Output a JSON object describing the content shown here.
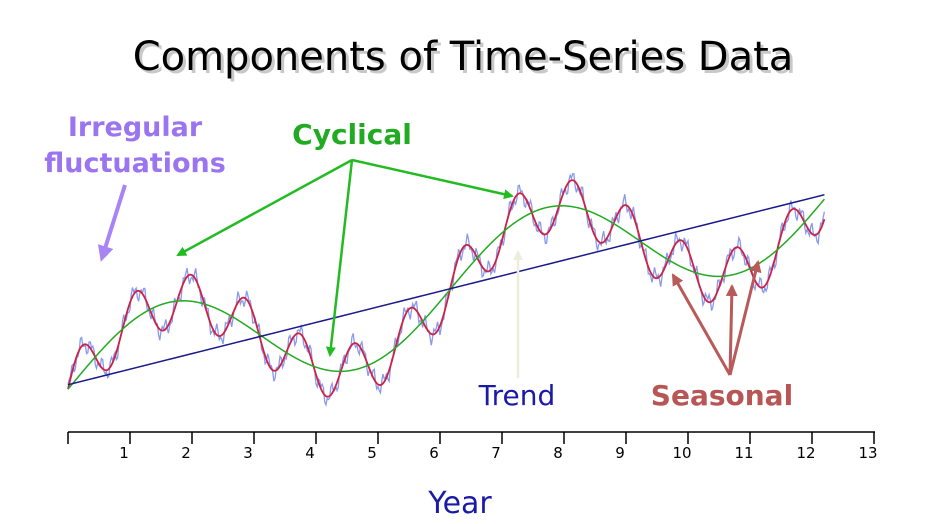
{
  "chart_data": {
    "type": "line",
    "title": "Components of Time-Series Data",
    "xlabel": "Year",
    "ylabel": "",
    "xlim": [
      0,
      13
    ],
    "ylim": [
      -1.6,
      1.6
    ],
    "x_ticks": [
      1,
      2,
      3,
      4,
      5,
      6,
      7,
      8,
      9,
      10,
      11,
      12,
      13
    ],
    "grid": false,
    "components": {
      "trend": {
        "name": "Trend",
        "start": -1.05,
        "end": 0.95,
        "color": "#1a1a8c"
      },
      "cyclical": {
        "name": "Cyclical",
        "amplitude": 0.6,
        "period_years": 6.1,
        "peak_year": 1.6,
        "color": "#22aa22"
      },
      "seasonal": {
        "name": "Seasonal",
        "amplitude": 0.28,
        "period_years": 0.88,
        "color": "#cc2244"
      },
      "irregular": {
        "name": "Irregular fluctuations",
        "amplitude": 0.12,
        "color": "#8899ee"
      }
    },
    "data_range": [
      0,
      12.2
    ],
    "annotations": [
      {
        "text": "Irregular",
        "color": "#9b74f0"
      },
      {
        "text": "fluctuations",
        "color": "#9b74f0"
      },
      {
        "text": "Cyclical",
        "color": "#22aa22"
      },
      {
        "text": "Trend",
        "color": "#1a1aa8"
      },
      {
        "text": "Seasonal",
        "color": "#b85656"
      }
    ],
    "arrow_colors": {
      "irregular": "#a884f4",
      "cyclical": "#22bb22",
      "trend": "#ededdc",
      "seasonal": "#b85a5a"
    }
  }
}
